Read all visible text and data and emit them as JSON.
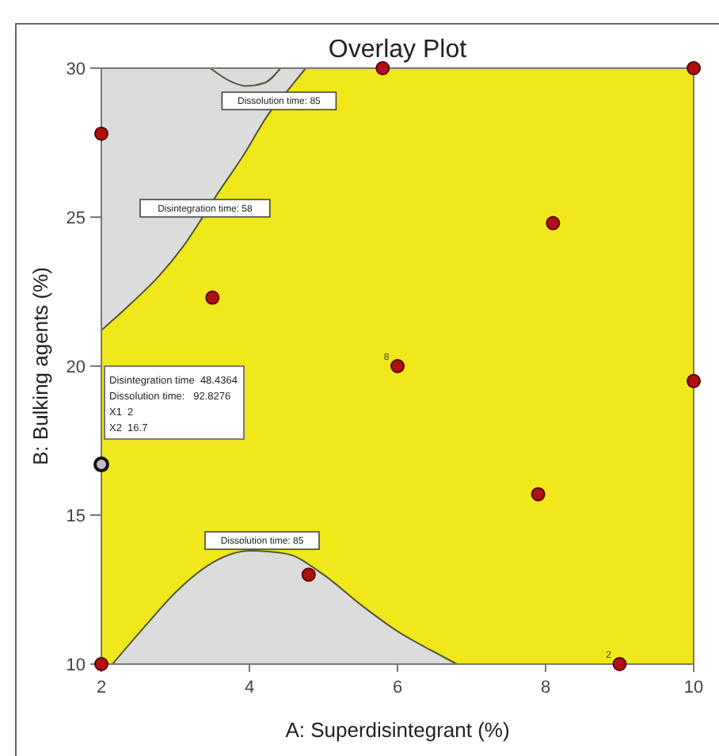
{
  "chart_data": {
    "type": "scatter",
    "title": "Overlay Plot",
    "xlabel": "A: Superdisintegrant (%)",
    "ylabel": "B: Bulking agents (%)",
    "xlim": [
      2,
      10
    ],
    "ylim": [
      10,
      30
    ],
    "xticks": [
      2,
      4,
      6,
      8,
      10
    ],
    "yticks": [
      10,
      15,
      20,
      25,
      30
    ],
    "grid": false,
    "bands": [
      {
        "axis": "y",
        "from": 10,
        "to": 30,
        "color": "#f0e81a"
      }
    ],
    "series": [
      {
        "type": "line",
        "color": "#555533",
        "x": [
          2,
          2.4,
          2.77,
          3.1,
          3.6,
          3.9,
          4.27,
          4.5,
          4.76
        ],
        "values": [
          21.2,
          22.1,
          23,
          24,
          25.9,
          27,
          28.5,
          29.2,
          30
        ],
        "lower": [
          21.2,
          22.1,
          23,
          24,
          25.9,
          27,
          28.5,
          29.2,
          30
        ],
        "upper": [
          30,
          30,
          30,
          30,
          30,
          30,
          30,
          30,
          30
        ]
      },
      {
        "type": "area",
        "color": "#dcdcdc",
        "x": [
          2.15,
          2.6,
          3,
          3.5,
          4,
          4.5,
          5,
          5.5,
          6,
          6.5,
          6.8
        ],
        "values": [
          10,
          11.3,
          12.4,
          13.4,
          13.8,
          13.7,
          13,
          12,
          11.1,
          10.4,
          10
        ]
      },
      {
        "type": "line",
        "color": "#555533",
        "x": [
          3.47,
          3.75,
          3.95,
          4.2,
          4.42
        ],
        "values": [
          30,
          29.55,
          29.4,
          29.5,
          30
        ]
      },
      {
        "color": "#b01010",
        "marker": "circle",
        "x": [
          2,
          5.8,
          10,
          3.5,
          8.1,
          6,
          10,
          7.9,
          4.8,
          2,
          9
        ],
        "values": [
          27.8,
          30,
          30,
          22.3,
          24.8,
          20,
          19.5,
          15.7,
          13,
          10,
          10
        ]
      },
      {
        "color": "#c8b8c8",
        "marker": "circle",
        "x": [
          2
        ],
        "values": [
          16.7
        ]
      }
    ],
    "annotations": [
      {
        "text": "Dissolution time: 85",
        "x": 4.4,
        "y": 28.9
      },
      {
        "text": "Disintegration time: 58",
        "x": 3.4,
        "y": 25.3
      },
      {
        "text": "Dissolution time: 85",
        "x": 4,
        "y": 13.8
      },
      {
        "text": "8",
        "x": 6,
        "y": 20
      },
      {
        "text": "2",
        "x": 9,
        "y": 10
      },
      "Disintegration time  48.4364\nDissolution time:   92.8276\nX1  2\nX2  16.7"
    ]
  }
}
